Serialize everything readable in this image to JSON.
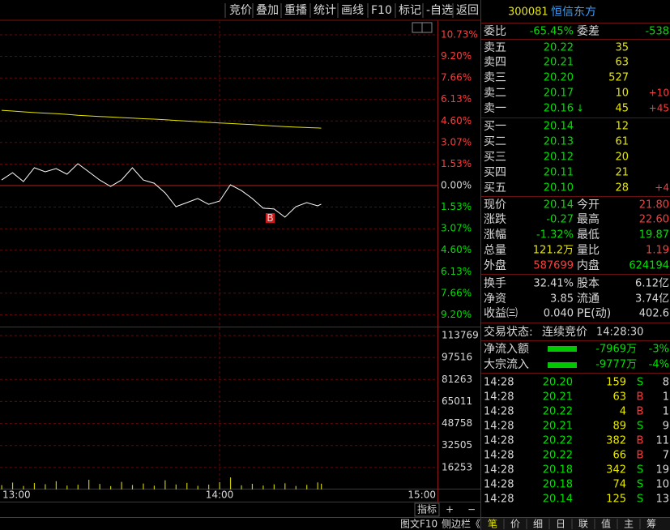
{
  "toolbar": [
    "竞价",
    "叠加",
    "重播",
    "统计",
    "画线",
    "F10",
    "标记",
    "-自选",
    "返回"
  ],
  "quote": {
    "code": "300081",
    "name": "恒信东方"
  },
  "weibi": [
    "委比",
    "-65.45%",
    "委差",
    "-538"
  ],
  "asks": [
    {
      "label": "卖五",
      "price": "20.22",
      "volume": "35"
    },
    {
      "label": "卖四",
      "price": "20.21",
      "volume": "63"
    },
    {
      "label": "卖三",
      "price": "20.20",
      "volume": "527"
    },
    {
      "label": "卖二",
      "price": "20.17",
      "volume": "10",
      "change": "+10"
    },
    {
      "label": "卖一",
      "price": "20.16",
      "arrow": "↓",
      "volume": "45",
      "change": "+45"
    }
  ],
  "bids": [
    {
      "label": "买一",
      "price": "20.14",
      "volume": "12"
    },
    {
      "label": "买二",
      "price": "20.13",
      "volume": "61"
    },
    {
      "label": "买三",
      "price": "20.12",
      "volume": "20"
    },
    {
      "label": "买四",
      "price": "20.11",
      "volume": "21"
    },
    {
      "label": "买五",
      "price": "20.10",
      "volume": "28",
      "change": "+4"
    }
  ],
  "stats": [
    [
      "现价",
      "20.14",
      "今开",
      "21.80"
    ],
    [
      "涨跌",
      "-0.27",
      "最高",
      "22.60"
    ],
    [
      "涨幅",
      "-1.32%",
      "最低",
      "19.87"
    ],
    [
      "总量",
      "121.2万",
      "量比",
      "1.19"
    ],
    [
      "外盘",
      "587699",
      "内盘",
      "624194"
    ]
  ],
  "fundamentals": [
    [
      "换手",
      "32.41%",
      "股本",
      "6.12亿"
    ],
    [
      "净资",
      "3.85",
      "流通",
      "3.74亿"
    ],
    [
      "收益㈢",
      "0.040",
      "PE(动)",
      "402.6"
    ]
  ],
  "trade_status": {
    "label": "交易状态:",
    "value": "连续竞价",
    "time": "14:28:30"
  },
  "flows": [
    [
      "净流入额",
      "-7969万",
      "-3%"
    ],
    [
      "大宗流入",
      "-9777万",
      "-4%"
    ]
  ],
  "trades": [
    [
      "14:28",
      "20.20",
      "159",
      "S",
      "8"
    ],
    [
      "14:28",
      "20.21",
      "63",
      "B",
      "1"
    ],
    [
      "14:28",
      "20.22",
      "4",
      "B",
      "1"
    ],
    [
      "14:28",
      "20.21",
      "89",
      "S",
      "9"
    ],
    [
      "14:28",
      "20.22",
      "382",
      "B",
      "11"
    ],
    [
      "14:28",
      "20.22",
      "66",
      "B",
      "7"
    ],
    [
      "14:28",
      "20.18",
      "342",
      "S",
      "19"
    ],
    [
      "14:28",
      "20.18",
      "74",
      "S",
      "10"
    ],
    [
      "14:28",
      "20.14",
      "125",
      "S",
      "13"
    ]
  ],
  "tabs": [
    "笔",
    "价",
    "细",
    "日",
    "联",
    "值",
    "主",
    "筹"
  ],
  "chart_controls": [
    "指标",
    "+",
    "−"
  ],
  "footer_links": [
    "图文F10",
    "侧边栏《"
  ],
  "chart_data": {
    "type": "line",
    "annotation": "B",
    "x": [
      "13:00",
      "13:03",
      "13:06",
      "13:09",
      "13:12",
      "13:15",
      "13:18",
      "13:21",
      "13:24",
      "13:27",
      "13:30",
      "13:33",
      "13:36",
      "13:39",
      "13:42",
      "13:45",
      "13:48",
      "13:51",
      "13:54",
      "13:57",
      "14:00",
      "14:03",
      "14:06",
      "14:09",
      "14:12",
      "14:15",
      "14:18",
      "14:21",
      "14:24",
      "14:27",
      "14:28"
    ],
    "xlim": [
      "13:00",
      "15:00"
    ],
    "xticks": [
      "13:00",
      "14:00",
      "15:00"
    ],
    "ylim": [
      -10.73,
      10.73
    ],
    "yticks": [
      {
        "value": 10.73,
        "label": "10.73%"
      },
      {
        "value": 9.2,
        "label": "9.20%"
      },
      {
        "value": 7.66,
        "label": "7.66%"
      },
      {
        "value": 6.13,
        "label": "6.13%"
      },
      {
        "value": 4.6,
        "label": "4.60%"
      },
      {
        "value": 3.07,
        "label": "3.07%"
      },
      {
        "value": 1.53,
        "label": "1.53%"
      },
      {
        "value": 0,
        "label": "0.00%"
      },
      {
        "value": -1.53,
        "label": "1.53%"
      },
      {
        "value": -3.07,
        "label": "3.07%"
      },
      {
        "value": -4.6,
        "label": "4.60%"
      },
      {
        "value": -6.13,
        "label": "6.13%"
      },
      {
        "value": -7.66,
        "label": "7.66%"
      },
      {
        "value": -9.2,
        "label": "9.20%"
      }
    ],
    "y2lim": [
      0,
      113769
    ],
    "y2ticks": [
      113769,
      97516,
      81263,
      65011,
      48758,
      32505,
      16253
    ],
    "grid": true,
    "series": [
      {
        "color": "#ffffff",
        "values": [
          0.4,
          0.92,
          0.29,
          1.27,
          0.98,
          1.21,
          0.81,
          1.56,
          0.98,
          0.4,
          -0.06,
          0.4,
          1.27,
          0.4,
          0.17,
          -0.52,
          -1.5,
          -1.21,
          -0.92,
          -1.33,
          -1.1,
          0.06,
          -0.35,
          -0.92,
          -1.61,
          -1.67,
          -2.25,
          -1.5,
          -1.21,
          -1.44,
          -1.32
        ]
      },
      {
        "color": "#e6e600",
        "values": [
          5.36,
          5.31,
          5.25,
          5.2,
          5.16,
          5.12,
          5.07,
          5.01,
          4.96,
          4.92,
          4.88,
          4.84,
          4.8,
          4.76,
          4.73,
          4.69,
          4.64,
          4.59,
          4.55,
          4.5,
          4.46,
          4.42,
          4.38,
          4.34,
          4.29,
          4.24,
          4.2,
          4.16,
          4.13,
          4.1,
          4.09
        ]
      },
      {
        "type": "bar",
        "axis": "y2",
        "color": "#c8c800",
        "values": [
          3200,
          5100,
          2600,
          4800,
          3900,
          6100,
          2900,
          3500,
          7200,
          4100,
          2500,
          5600,
          3300,
          4400,
          2800,
          6800,
          3700,
          4900,
          2700,
          3600,
          5400,
          8900,
          3100,
          4200,
          2900,
          3800,
          4600,
          2600,
          3400,
          5200,
          4300
        ]
      }
    ]
  }
}
